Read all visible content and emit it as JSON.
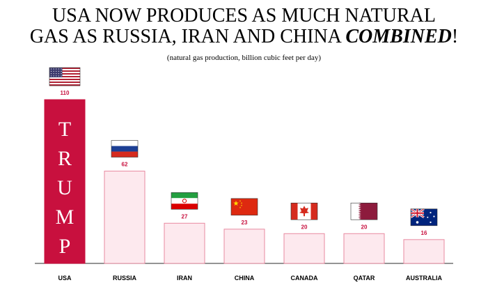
{
  "title_line1": "USA NOW PRODUCES AS MUCH NATURAL",
  "title_line2_prefix": "GAS AS RUSSIA, IRAN AND CHINA ",
  "title_emphasis": "COMBINED",
  "title_suffix": "!",
  "subtitle": "(natural gas production, billion cubic feet per day)",
  "bar_label": [
    "T",
    "R",
    "U",
    "M",
    "P"
  ],
  "colors": {
    "highlight_bar": "#c8103e",
    "other_bar_fill": "#fde9ee",
    "other_bar_stroke": "#e88aa0",
    "value_label": "#c8103e"
  },
  "chart_data": {
    "type": "bar",
    "title": "USA NOW PRODUCES AS MUCH NATURAL GAS AS RUSSIA, IRAN AND CHINA COMBINED!",
    "subtitle": "(natural gas production, billion cubic feet per day)",
    "categories": [
      "USA",
      "RUSSIA",
      "IRAN",
      "CHINA",
      "CANADA",
      "QATAR",
      "AUSTRALIA"
    ],
    "values": [
      110,
      62,
      27,
      23,
      20,
      20,
      16
    ],
    "flags": [
      "usa-flag-icon",
      "russia-flag-icon",
      "iran-flag-icon",
      "china-flag-icon",
      "canada-flag-icon",
      "qatar-flag-icon",
      "australia-flag-icon"
    ],
    "xlabel": "",
    "ylabel": "",
    "ylim": [
      0,
      110
    ],
    "grid": false,
    "legend": "none"
  }
}
